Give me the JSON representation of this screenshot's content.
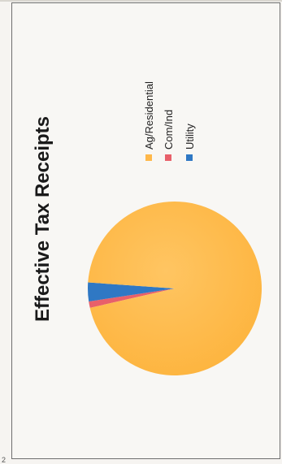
{
  "chart_data": {
    "type": "pie",
    "title": "Effective Tax Receipts",
    "series": [
      {
        "values": [
          95.3,
          1.2,
          3.5
        ],
        "categories": [
          "Ag/Residential",
          "Com/Ind",
          "Utility"
        ]
      }
    ],
    "categories": [
      "Ag/Residential",
      "Com/Ind",
      "Utility"
    ],
    "values": [
      95.3,
      1.2,
      3.5
    ],
    "colors": [
      "#ffb84a",
      "#e8606a",
      "#2f78c4"
    ],
    "legend": "right",
    "orientation": "rotated-90-counterclockwise"
  },
  "page_mark": "2"
}
